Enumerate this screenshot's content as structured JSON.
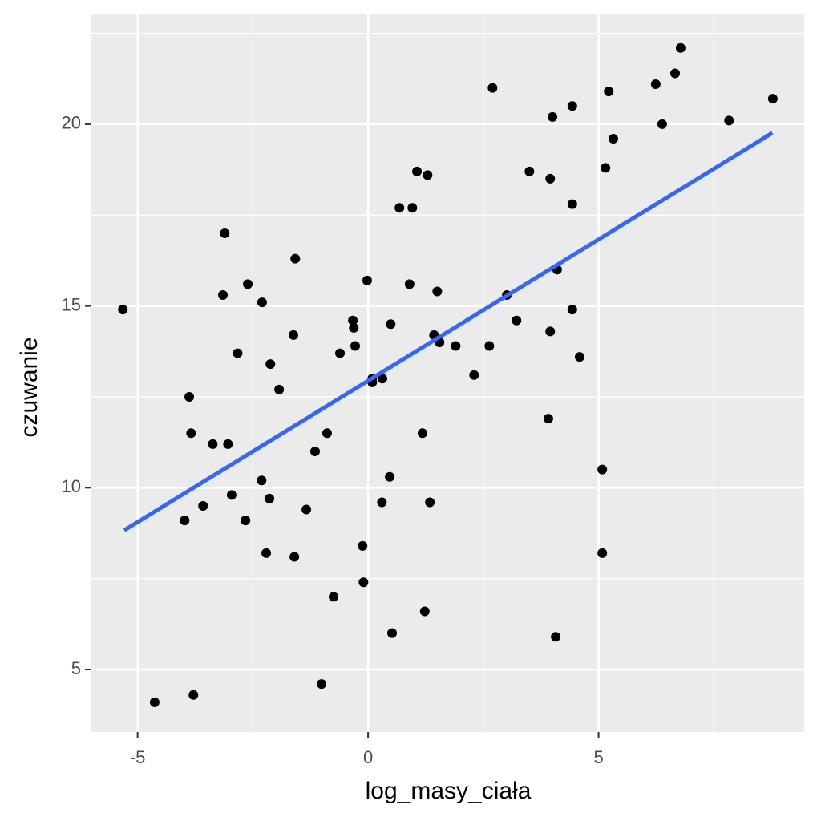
{
  "chart_data": {
    "type": "scatter",
    "x_label": "log_masy_ciała",
    "y_label": "czuwanie",
    "x": [
      -5.32,
      -4.63,
      -3.79,
      -3.88,
      -3.84,
      -3.98,
      -3.58,
      -3.37,
      -3.04,
      -3.11,
      -3.15,
      -2.83,
      -2.96,
      -2.66,
      -2.61,
      -2.3,
      -2.31,
      -2.14,
      -2.12,
      -2.21,
      -1.93,
      -1.62,
      -1.58,
      -1.6,
      -1.34,
      -1.15,
      -0.89,
      -1.01,
      -0.75,
      -0.61,
      -0.28,
      -0.33,
      -0.31,
      -0.12,
      -0.1,
      -0.02,
      0.09,
      0.09,
      0.31,
      0.3,
      0.49,
      0.47,
      0.52,
      0.68,
      0.96,
      0.9,
      1.06,
      1.29,
      1.18,
      1.34,
      1.23,
      1.43,
      1.5,
      1.55,
      1.9,
      2.3,
      2.63,
      2.7,
      3.01,
      3.22,
      3.5,
      3.91,
      3.95,
      3.95,
      4.0,
      4.1,
      4.07,
      4.43,
      4.43,
      4.43,
      4.59,
      5.08,
      5.08,
      5.15,
      5.22,
      5.32,
      6.24,
      6.38,
      6.66,
      6.78,
      7.83,
      8.78
    ],
    "series": [
      {
        "color": "#000000",
        "values": [
          14.9,
          4.1,
          4.3,
          12.5,
          11.5,
          9.1,
          9.5,
          11.2,
          11.2,
          17.0,
          15.3,
          13.7,
          9.8,
          9.1,
          15.6,
          15.1,
          10.2,
          9.7,
          13.4,
          8.2,
          12.7,
          14.2,
          16.3,
          8.1,
          9.4,
          11.0,
          11.5,
          4.6,
          7.0,
          13.7,
          13.9,
          14.6,
          14.4,
          8.4,
          7.4,
          15.7,
          13.0,
          12.9,
          13.0,
          9.6,
          14.5,
          10.3,
          6.0,
          17.7,
          17.7,
          15.6,
          18.7,
          18.6,
          11.5,
          9.6,
          6.6,
          14.2,
          15.4,
          14.0,
          13.9,
          13.1,
          13.9,
          21.0,
          15.3,
          14.6,
          18.7,
          11.9,
          18.5,
          14.3,
          20.2,
          16.0,
          5.9,
          17.8,
          14.9,
          20.5,
          13.6,
          10.5,
          8.2,
          18.8,
          20.9,
          19.6,
          21.1,
          20.0,
          21.4,
          22.1,
          20.1,
          20.7
        ]
      }
    ],
    "trend": {
      "color": "#3366ff",
      "x": [
        -5.29,
        8.77
      ],
      "values": [
        8.83,
        19.76
      ]
    },
    "xlim": [
      -6.02,
      9.46
    ],
    "ylim": [
      3.28,
      23.02
    ],
    "xticks": [
      -5,
      0,
      5
    ],
    "yticks": [
      5,
      10,
      15,
      20
    ],
    "x_minor_grid": [
      -2.5,
      2.5,
      7.5
    ],
    "y_minor_grid": [
      7.5,
      12.5,
      17.5,
      22.5
    ],
    "grid": true
  }
}
